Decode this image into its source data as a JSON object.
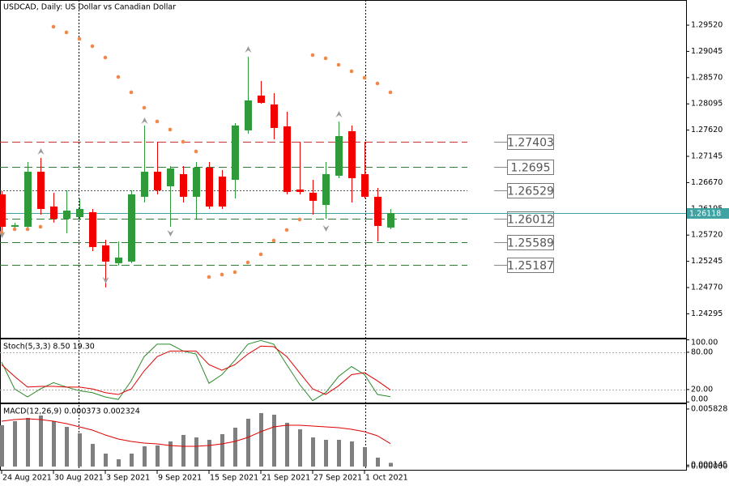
{
  "chart_data": [
    {
      "type": "candlestick",
      "title": "USDCAD, Daily:  US Dollar vs Canadian Dollar",
      "categories": [
        "24 Aug 2021",
        null,
        null,
        null,
        "30 Aug 2021",
        null,
        null,
        null,
        "3 Sep 2021",
        null,
        null,
        null,
        "9 Sep 2021",
        null,
        null,
        null,
        "15 Sep 2021",
        null,
        null,
        null,
        "21 Sep 2021",
        null,
        null,
        null,
        "27 Sep 2021",
        null,
        null,
        null,
        "1 Oct 2021",
        null,
        null
      ],
      "open": [
        1.26457,
        1.2587,
        1.2587,
        1.26867,
        1.26237,
        1.26017,
        1.26046,
        1.26134,
        1.25533,
        1.25211,
        1.2524,
        1.26413,
        1.26867,
        1.26603,
        1.26823,
        1.26413,
        1.2694,
        1.26779,
        1.2672,
        1.27615,
        1.28245,
        1.28084,
        1.27688,
        1.26545,
        1.26486,
        1.26266,
        1.26794,
        1.276,
        1.26823,
        1.26413,
        1.25856
      ],
      "high": [
        1.26515,
        1.25944,
        1.27043,
        1.27116,
        1.26486,
        1.2653,
        1.26383,
        1.26193,
        1.25636,
        1.25606,
        1.2653,
        1.27703,
        1.2741,
        1.2697,
        1.2697,
        1.27043,
        1.27043,
        1.26896,
        1.27747,
        1.28949,
        1.28509,
        1.28289,
        1.27952,
        1.2741,
        1.2672,
        1.27043,
        1.27776,
        1.27703,
        1.2741,
        1.26574,
        1.26193
      ],
      "low": [
        1.25724,
        1.25797,
        1.25797,
        1.2609,
        1.25944,
        1.25753,
        1.25988,
        1.2543,
        1.24771,
        1.25167,
        1.25211,
        1.2631,
        1.26457,
        1.2587,
        1.2631,
        1.26017,
        1.26193,
        1.26193,
        1.26383,
        1.27556,
        1.28099,
        1.27453,
        1.26457,
        1.26457,
        1.2609,
        1.26017,
        1.2675,
        1.2631,
        1.26383,
        1.25606,
        1.25826
      ],
      "close": [
        1.2587,
        1.259,
        1.26867,
        1.26193,
        1.26017,
        1.26163,
        1.26193,
        1.25504,
        1.2524,
        1.25313,
        1.26457,
        1.26867,
        1.2653,
        1.26926,
        1.26413,
        1.2694,
        1.26237,
        1.26237,
        1.27703,
        1.28157,
        1.28113,
        1.27659,
        1.26501,
        1.26501,
        1.2634,
        1.26823,
        1.27512,
        1.2675,
        1.26413,
        1.25885,
        1.26118
      ],
      "up_color": "#2f9a3a",
      "down_color": "#f20000",
      "sar": {
        "color": "#f4874b",
        "values": [
          1.25768,
          1.25826,
          1.25826,
          1.2587,
          1.29491,
          1.29389,
          1.29271,
          1.29139,
          1.28934,
          1.28582,
          1.28304,
          1.28025,
          1.27776,
          1.2763,
          1.2741,
          1.27234,
          1.24961,
          1.25005,
          1.25049,
          1.25225,
          1.25372,
          1.25621,
          1.25812,
          1.26002,
          1.28978,
          1.2892,
          1.28802,
          1.28685,
          1.28568,
          1.28465,
          1.28304
        ]
      },
      "fractals_up": {
        "color": "#9a9a9a",
        "values": [
          null,
          null,
          null,
          1.27292,
          null,
          null,
          null,
          null,
          null,
          null,
          null,
          1.27849,
          null,
          null,
          null,
          null,
          null,
          null,
          null,
          1.29139,
          null,
          null,
          null,
          null,
          null,
          null,
          1.27967,
          null,
          null,
          null,
          null
        ]
      },
      "fractals_down": {
        "color": "#9a9a9a",
        "values": [
          1.25665,
          null,
          null,
          null,
          null,
          null,
          null,
          null,
          1.24844,
          null,
          null,
          null,
          null,
          1.25694,
          null,
          null,
          null,
          null,
          null,
          null,
          null,
          null,
          null,
          null,
          null,
          1.25782,
          null,
          null,
          null,
          null,
          null
        ]
      },
      "levels": [
        {
          "value": 1.27403,
          "color": "#c83232",
          "style": "dashed"
        },
        {
          "value": 1.2695,
          "color": "#2e7d32",
          "style": "dashed"
        },
        {
          "value": 1.26529,
          "color": "#555555",
          "style": "dotted"
        },
        {
          "value": 1.26012,
          "color": "#2e7d32",
          "style": "dashed"
        },
        {
          "value": 1.25589,
          "color": "#2e7d32",
          "style": "dashed"
        },
        {
          "value": 1.25187,
          "color": "#2e7d32",
          "style": "dashed"
        }
      ],
      "last_price": 1.26118,
      "last_color": "#3fa3a3",
      "ylim": [
        1.23861,
        1.29975
      ],
      "yticks": [
        {
          "value": 1.2952,
          "label": "1.29520"
        },
        {
          "value": 1.29045,
          "label": "1.29045"
        },
        {
          "value": 1.2857,
          "label": "1.28570"
        },
        {
          "value": 1.28095,
          "label": "1.28095"
        },
        {
          "value": 1.2762,
          "label": "1.27620"
        },
        {
          "value": 1.27145,
          "label": "1.27145"
        },
        {
          "value": 1.2667,
          "label": "1.26670"
        },
        {
          "value": 1.26195,
          "label": "1.26195"
        },
        {
          "value": 1.2572,
          "label": "1.25720"
        },
        {
          "value": 1.25245,
          "label": "1.25245"
        },
        {
          "value": 1.2477,
          "label": "1.24770"
        },
        {
          "value": 1.24295,
          "label": "1.24295"
        }
      ]
    },
    {
      "type": "line",
      "title": "Stoch(5,3,3) 8.50 19.30",
      "series": [
        {
          "color": "#2e8b2e",
          "values": [
            64,
            21,
            8,
            21,
            31,
            24,
            18,
            15,
            8,
            4,
            34,
            73,
            93,
            93,
            82,
            77,
            30,
            44,
            67,
            93,
            99,
            93,
            60,
            28,
            2,
            15,
            41,
            57,
            44,
            12,
            8.5
          ]
        },
        {
          "color": "#e00000",
          "values": [
            60,
            41,
            24,
            25,
            25,
            24,
            24,
            21,
            15,
            12,
            21,
            50,
            73,
            82,
            82,
            82,
            60,
            51,
            60,
            77,
            90,
            89,
            73,
            47,
            21,
            12,
            26,
            44,
            47,
            34,
            19.3
          ]
        }
      ],
      "levels": [
        80,
        20
      ],
      "ylim": [
        -1,
        102
      ],
      "yticks": [
        {
          "value": 100,
          "label": "100.00"
        },
        {
          "value": 80,
          "label": "80.00"
        },
        {
          "value": 20,
          "label": "20.00"
        },
        {
          "value": 0,
          "label": "0.00"
        }
      ]
    },
    {
      "type": "bar",
      "title": "MACD(12,26,9) 0.000373 0.002324",
      "values": [
        0.004187,
        0.004597,
        0.004925,
        0.005172,
        0.004597,
        0.004022,
        0.003366,
        0.002298,
        0.001313,
        0.000739,
        0.001313,
        0.002052,
        0.002134,
        0.002545,
        0.003201,
        0.002955,
        0.002709,
        0.003284,
        0.00394,
        0.004843,
        0.005418,
        0.005254,
        0.004433,
        0.003776,
        0.002955,
        0.002709,
        0.002709,
        0.002545,
        0.00197,
        0.000903,
        0.000373
      ],
      "color": "#7f7f7f",
      "signal": {
        "color": "#e00000",
        "values": [
          0.004597,
          0.004761,
          0.004843,
          0.004761,
          0.004597,
          0.004351,
          0.004022,
          0.003694,
          0.003201,
          0.002791,
          0.002545,
          0.002381,
          0.002298,
          0.002134,
          0.002052,
          0.002052,
          0.002134,
          0.002298,
          0.002545,
          0.002955,
          0.00353,
          0.004022,
          0.004187,
          0.004187,
          0.004104,
          0.004022,
          0.00394,
          0.003776,
          0.00353,
          0.003119,
          0.002324
        ]
      },
      "ylim": [
        -0.00033,
        0.0064
      ],
      "yticks": [
        0.005828,
        0.000145,
        {
          "value": 0,
          "label": "0.000000"
        }
      ]
    }
  ]
}
